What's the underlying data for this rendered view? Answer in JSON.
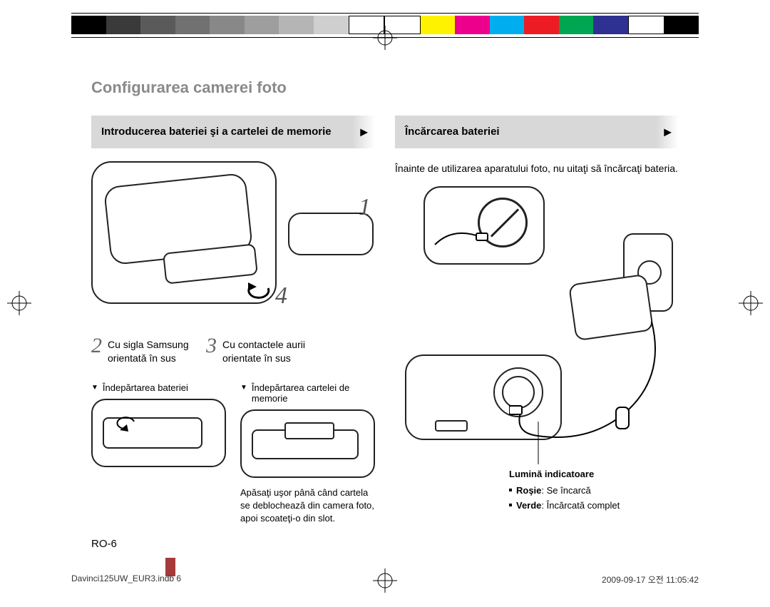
{
  "colorbar": [
    "#000000",
    "#3a3a3a",
    "#5a5a5a",
    "#717171",
    "#888888",
    "#9e9e9e",
    "#b5b5b5",
    "#cfcfcf",
    "#ffffff",
    "#ffffff",
    "#fff200",
    "#ec008c",
    "#00aeef",
    "#ed1c24",
    "#00a651",
    "#2e3192",
    "#ffffff",
    "#000000"
  ],
  "title": "Configurarea camerei foto",
  "left": {
    "ribbon": "Introducerea bateriei şi a cartelei de memorie",
    "step1_num": "1",
    "step4_num": "4",
    "step2_num": "2",
    "step2_txt": "Cu sigla Samsung orientată în sus",
    "step3_num": "3",
    "step3_txt": "Cu contactele aurii orientate în sus",
    "remove_batt": "Îndepărtarea bateriei",
    "remove_card": "Îndepărtarea cartelei de memorie",
    "press_note": "Apăsaţi uşor până când cartela se deblochează din camera foto, apoi scoateţi-o din slot."
  },
  "right": {
    "ribbon": "Încărcarea bateriei",
    "body": "Înainte de utilizarea aparatului foto, nu uitaţi să încărcaţi bateria.",
    "indicator_hdr": "Lumină indicatoare",
    "ind_red_label": "Roşie",
    "ind_red_txt": ": Se încarcă",
    "ind_green_label": "Verde",
    "ind_green_txt": ": Încărcată complet"
  },
  "page_num": "RO-6",
  "footer_left": "Davinci125UW_EUR3.indb   6",
  "footer_right": "2009-09-17   오전 11:05:42"
}
